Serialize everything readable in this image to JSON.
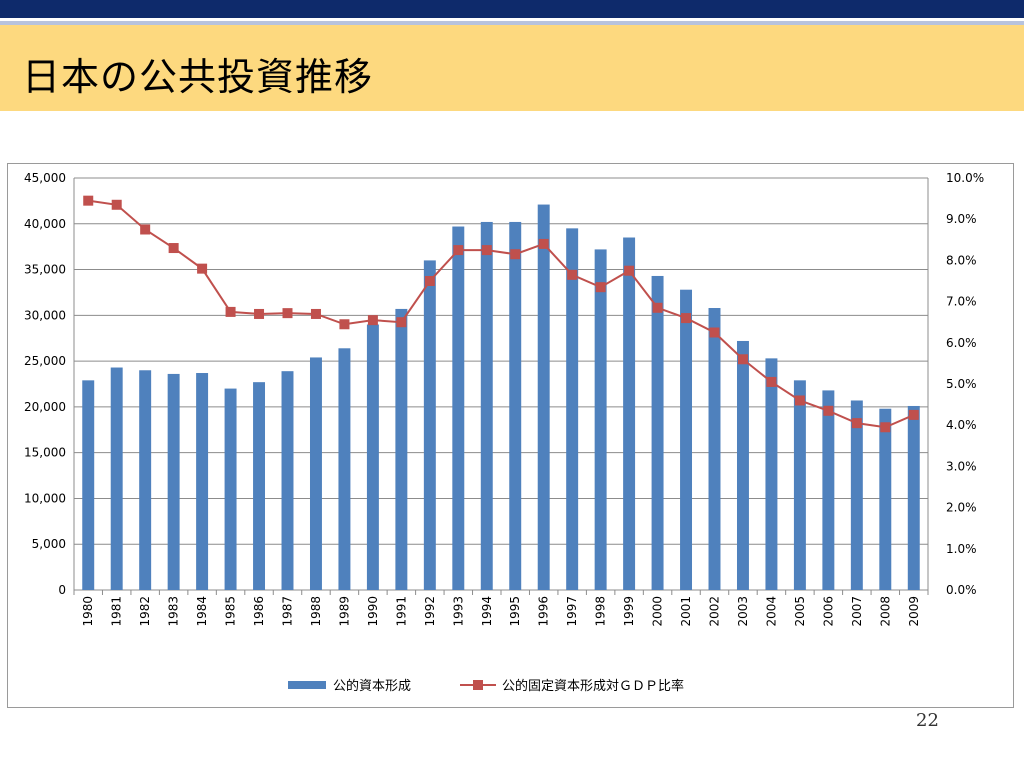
{
  "slide": {
    "title": "日本の公共投資推移",
    "page_number": "22"
  },
  "colors": {
    "top_bar": "#0e2a6b",
    "title_band": "#fdd97f",
    "bar": "#4f81bd",
    "line": "#c0504d"
  },
  "chart_data": {
    "type": "bar",
    "title": "",
    "categories": [
      "1980",
      "1981",
      "1982",
      "1983",
      "1984",
      "1985",
      "1986",
      "1987",
      "1988",
      "1989",
      "1990",
      "1991",
      "1992",
      "1993",
      "1994",
      "1995",
      "1996",
      "1997",
      "1998",
      "1999",
      "2000",
      "2001",
      "2002",
      "2003",
      "2004",
      "2005",
      "2006",
      "2007",
      "2008",
      "2009"
    ],
    "series": [
      {
        "name": "公的資本形成",
        "type": "bar",
        "axis": "left",
        "values": [
          22900,
          24300,
          24000,
          23600,
          23700,
          22000,
          22700,
          23900,
          25400,
          26400,
          29000,
          30700,
          36000,
          39700,
          40200,
          40200,
          42100,
          39500,
          37200,
          38500,
          34300,
          32800,
          30800,
          27200,
          25300,
          22900,
          21800,
          20700,
          19800,
          20100
        ]
      },
      {
        "name": "公的固定資本形成対ＧＤＰ比率",
        "type": "line",
        "axis": "right",
        "values": [
          9.45,
          9.35,
          8.75,
          8.3,
          7.8,
          6.75,
          6.7,
          6.72,
          6.7,
          6.45,
          6.55,
          6.5,
          7.5,
          8.25,
          8.25,
          8.15,
          8.4,
          7.65,
          7.35,
          7.75,
          6.85,
          6.6,
          6.25,
          5.6,
          5.05,
          4.6,
          4.35,
          4.05,
          3.95,
          4.25
        ]
      }
    ],
    "y_left": {
      "min": 0,
      "max": 45000,
      "step": 5000,
      "tick_labels": [
        "0",
        "5,000",
        "10,000",
        "15,000",
        "20,000",
        "25,000",
        "30,000",
        "35,000",
        "40,000",
        "45,000"
      ]
    },
    "y_right": {
      "min": 0,
      "max": 10,
      "step": 1,
      "tick_labels": [
        "0.0%",
        "1.0%",
        "2.0%",
        "3.0%",
        "4.0%",
        "5.0%",
        "6.0%",
        "7.0%",
        "8.0%",
        "9.0%",
        "10.0%"
      ]
    },
    "grid": true,
    "legend_position": "bottom"
  }
}
